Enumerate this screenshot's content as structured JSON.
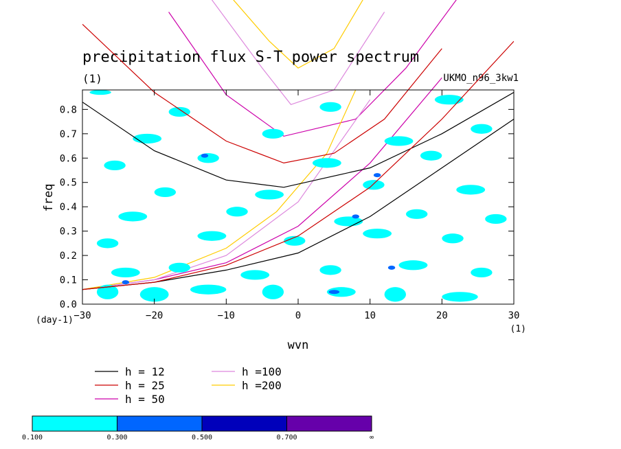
{
  "chart_data": {
    "type": "line",
    "title": "precipitation flux S-T power spectrum",
    "title_units": "(1)",
    "dataset_label": "UKMO_n96_3kw1",
    "xlabel": "wvn",
    "ylabel": "freq",
    "x_units": "(1)",
    "y_units": "(day-1)",
    "xlim": [
      -30,
      30
    ],
    "ylim": [
      0,
      0.88
    ],
    "xticks": [
      -30,
      -20,
      -10,
      0,
      10,
      20,
      30
    ],
    "yticks": [
      0.0,
      0.1,
      0.2,
      0.3,
      0.4,
      0.5,
      0.6,
      0.7,
      0.8
    ],
    "xtick_labels": [
      "−30",
      "−20",
      "−10",
      "0",
      "10",
      "20",
      "30"
    ],
    "ytick_labels": [
      "0.0",
      "0.1",
      "0.2",
      "0.3",
      "0.4",
      "0.5",
      "0.6",
      "0.7",
      "0.8"
    ],
    "series": [
      {
        "name": "h = 12",
        "color": "#000000",
        "ig_x": [
          -30,
          -20,
          -10,
          -2,
          10,
          20,
          30
        ],
        "ig_y": [
          0.83,
          0.63,
          0.51,
          0.48,
          0.56,
          0.7,
          0.87
        ],
        "k_x": [
          -30,
          -20,
          -10,
          0,
          10,
          20,
          30
        ],
        "k_y": [
          0.06,
          0.09,
          0.14,
          0.21,
          0.36,
          0.56,
          0.76
        ]
      },
      {
        "name": "h = 25",
        "color": "#cc0000",
        "ig_x": [
          -30,
          -20,
          -10,
          -2,
          5,
          12,
          20
        ],
        "ig_y": [
          1.15,
          0.87,
          0.67,
          0.58,
          0.62,
          0.76,
          1.05
        ],
        "k_x": [
          -30,
          -20,
          -10,
          0,
          10,
          20,
          30
        ],
        "k_y": [
          0.06,
          0.09,
          0.16,
          0.28,
          0.48,
          0.76,
          1.08
        ]
      },
      {
        "name": "h = 50",
        "color": "#cc00aa",
        "ig_x": [
          -18,
          -10,
          -2,
          8,
          15,
          22
        ],
        "ig_y": [
          1.2,
          0.86,
          0.69,
          0.76,
          0.97,
          1.25
        ],
        "k_x": [
          -30,
          -20,
          -10,
          0,
          10,
          20
        ],
        "k_y": [
          0.06,
          0.1,
          0.17,
          0.32,
          0.58,
          0.93
        ]
      },
      {
        "name": "h =100",
        "color": "#dd88dd",
        "ig_x": [
          -12,
          -5,
          -1,
          5,
          12
        ],
        "ig_y": [
          1.25,
          0.97,
          0.82,
          0.88,
          1.2
        ],
        "k_x": [
          -30,
          -20,
          -10,
          0,
          10
        ],
        "k_y": [
          0.06,
          0.1,
          0.2,
          0.42,
          0.84
        ]
      },
      {
        "name": "h =200",
        "color": "#ffcc00",
        "ig_x": [
          -9,
          -4,
          0,
          5,
          9
        ],
        "ig_y": [
          1.25,
          1.08,
          0.97,
          1.05,
          1.25
        ],
        "k_x": [
          -30,
          -20,
          -10,
          -3,
          4,
          8
        ],
        "k_y": [
          0.06,
          0.11,
          0.23,
          0.38,
          0.62,
          0.88
        ]
      }
    ],
    "contour_levels": [
      0.1,
      0.3,
      0.5,
      0.7
    ],
    "colorbar": {
      "colors": [
        "#00ffff",
        "#0066ff",
        "#0000bb",
        "#6600aa"
      ],
      "labels": [
        "0.100",
        "0.300",
        "0.500",
        "0.700",
        "∞"
      ]
    },
    "fill_patches": [
      [
        -28,
        0.05,
        3,
        0.03
      ],
      [
        -22,
        0.04,
        4,
        0.03
      ],
      [
        -15,
        0.06,
        5,
        0.02
      ],
      [
        -5,
        0.05,
        3,
        0.03
      ],
      [
        4,
        0.05,
        4,
        0.02
      ],
      [
        12,
        0.04,
        3,
        0.03
      ],
      [
        20,
        0.03,
        5,
        0.02
      ],
      [
        -26,
        0.13,
        4,
        0.02
      ],
      [
        -18,
        0.15,
        3,
        0.02
      ],
      [
        -8,
        0.12,
        4,
        0.02
      ],
      [
        3,
        0.14,
        3,
        0.02
      ],
      [
        14,
        0.16,
        4,
        0.02
      ],
      [
        24,
        0.13,
        3,
        0.02
      ],
      [
        -28,
        0.25,
        3,
        0.02
      ],
      [
        -14,
        0.28,
        4,
        0.02
      ],
      [
        -2,
        0.26,
        3,
        0.02
      ],
      [
        9,
        0.29,
        4,
        0.02
      ],
      [
        20,
        0.27,
        3,
        0.02
      ],
      [
        -25,
        0.36,
        4,
        0.02
      ],
      [
        -10,
        0.38,
        3,
        0.02
      ],
      [
        5,
        0.34,
        4,
        0.02
      ],
      [
        15,
        0.37,
        3,
        0.02
      ],
      [
        26,
        0.35,
        3,
        0.02
      ],
      [
        -20,
        0.46,
        3,
        0.02
      ],
      [
        -6,
        0.45,
        4,
        0.02
      ],
      [
        9,
        0.49,
        3,
        0.02
      ],
      [
        22,
        0.47,
        4,
        0.02
      ],
      [
        -27,
        0.57,
        3,
        0.02
      ],
      [
        -14,
        0.6,
        3,
        0.02
      ],
      [
        2,
        0.58,
        4,
        0.02
      ],
      [
        17,
        0.61,
        3,
        0.02
      ],
      [
        -23,
        0.68,
        4,
        0.02
      ],
      [
        -5,
        0.7,
        3,
        0.02
      ],
      [
        12,
        0.67,
        4,
        0.02
      ],
      [
        24,
        0.72,
        3,
        0.02
      ],
      [
        -18,
        0.79,
        3,
        0.02
      ],
      [
        3,
        0.81,
        3,
        0.02
      ],
      [
        19,
        0.84,
        4,
        0.02
      ],
      [
        -29,
        0.87,
        3,
        0.01
      ]
    ],
    "blue_patches": [
      [
        5,
        0.05,
        1.5,
        0.012
      ],
      [
        -24,
        0.09,
        1,
        0.01
      ],
      [
        13,
        0.15,
        1,
        0.01
      ],
      [
        -13,
        0.61,
        1,
        0.01
      ],
      [
        11,
        0.53,
        1,
        0.01
      ],
      [
        8,
        0.36,
        1,
        0.01
      ]
    ]
  }
}
